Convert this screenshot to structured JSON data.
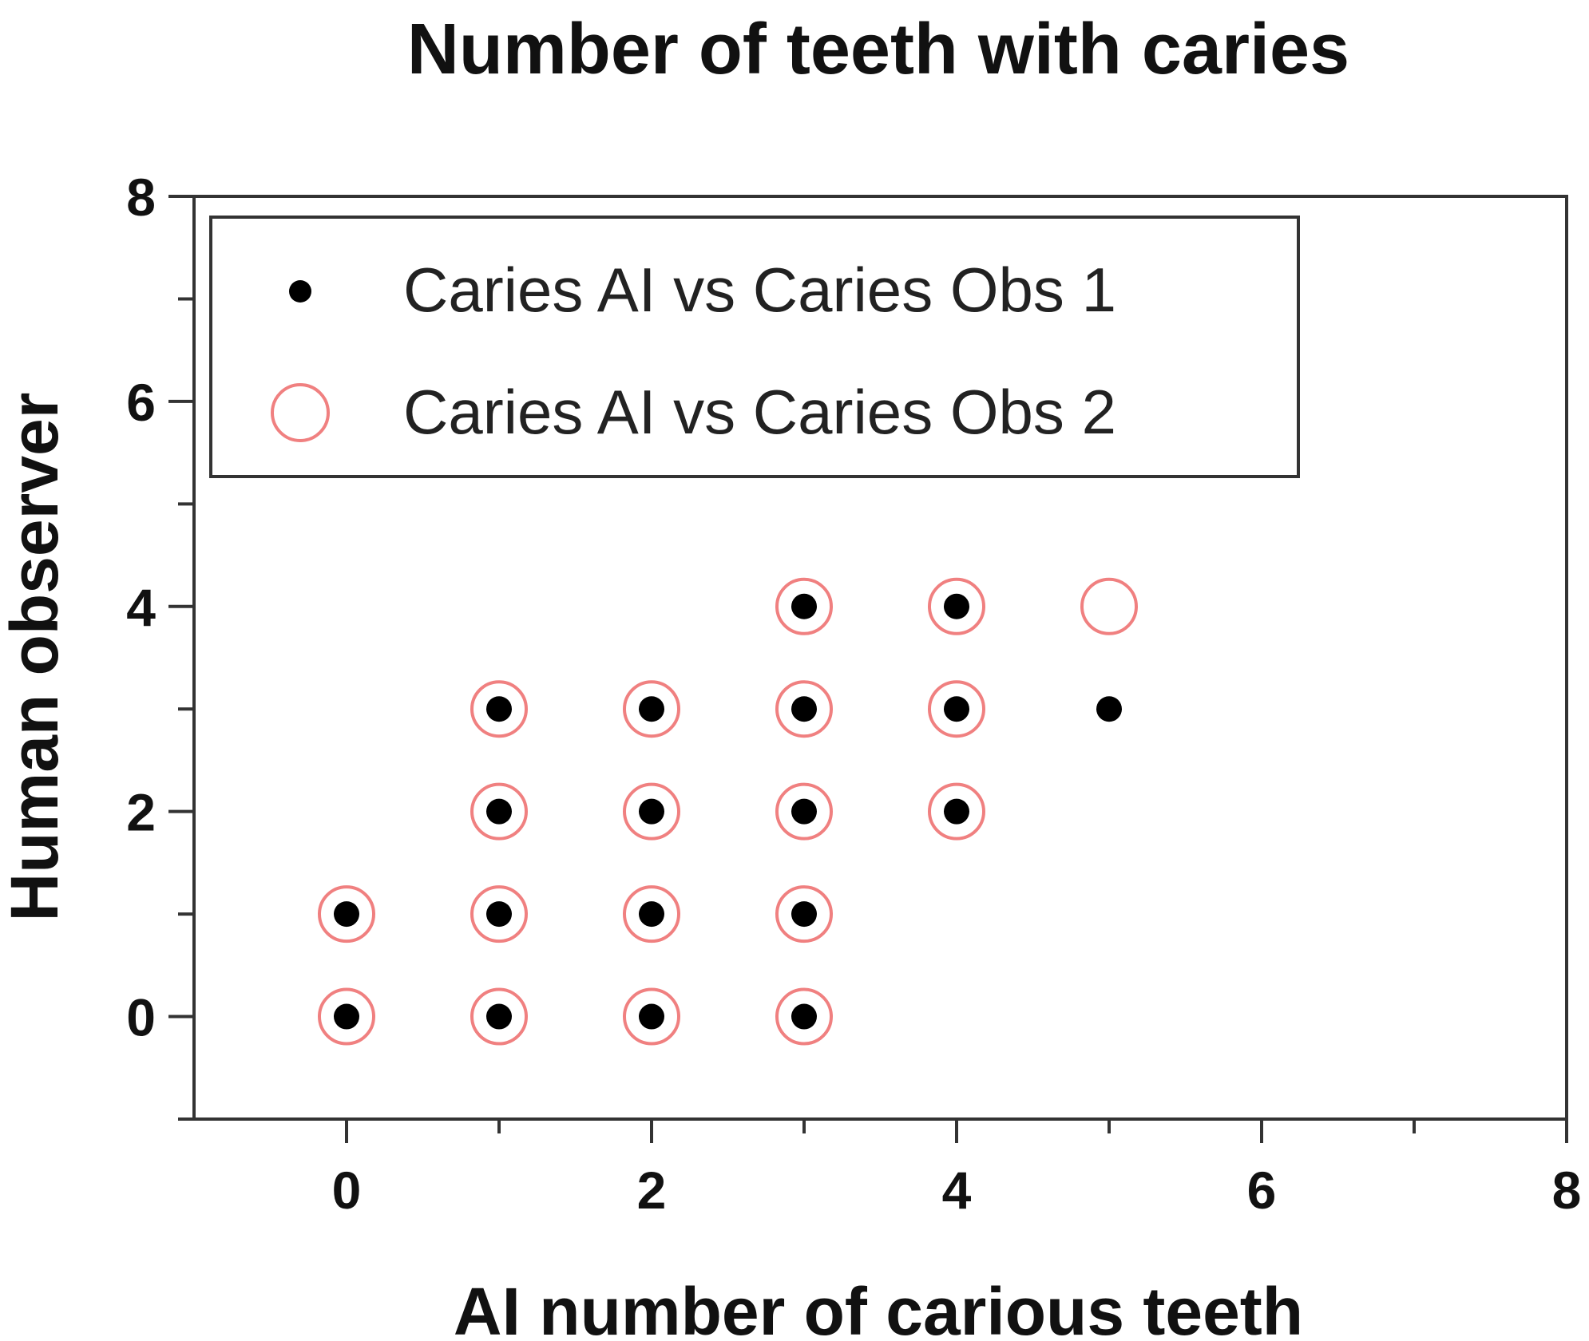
{
  "chart_data": {
    "type": "scatter",
    "title": "Number of teeth with caries",
    "xlabel": "AI number of carious teeth",
    "ylabel": "Human observer",
    "xlim": [
      -1,
      8
    ],
    "ylim": [
      -1,
      8
    ],
    "x_ticks": [
      "0",
      "2",
      "4",
      "6",
      "8"
    ],
    "y_ticks": [
      "0",
      "2",
      "4",
      "6",
      "8"
    ],
    "grid": false,
    "legend_position": "top-left",
    "series": [
      {
        "name": "Caries AI vs Caries Obs 1",
        "marker": "filled-circle",
        "color": "#000000",
        "x": [
          0,
          0,
          1,
          1,
          1,
          1,
          2,
          2,
          2,
          2,
          3,
          3,
          3,
          3,
          3,
          4,
          4,
          4,
          5
        ],
        "y": [
          0,
          1,
          0,
          1,
          2,
          3,
          0,
          1,
          2,
          3,
          0,
          1,
          2,
          3,
          4,
          2,
          3,
          4,
          3
        ]
      },
      {
        "name": "Caries AI vs Caries Obs 2",
        "marker": "open-circle",
        "color": "#f08080",
        "x": [
          0,
          0,
          1,
          1,
          1,
          1,
          2,
          2,
          2,
          2,
          3,
          3,
          3,
          3,
          3,
          4,
          4,
          4,
          5
        ],
        "y": [
          0,
          1,
          0,
          1,
          2,
          3,
          0,
          1,
          2,
          3,
          0,
          1,
          2,
          3,
          4,
          2,
          3,
          4,
          4
        ]
      }
    ]
  }
}
